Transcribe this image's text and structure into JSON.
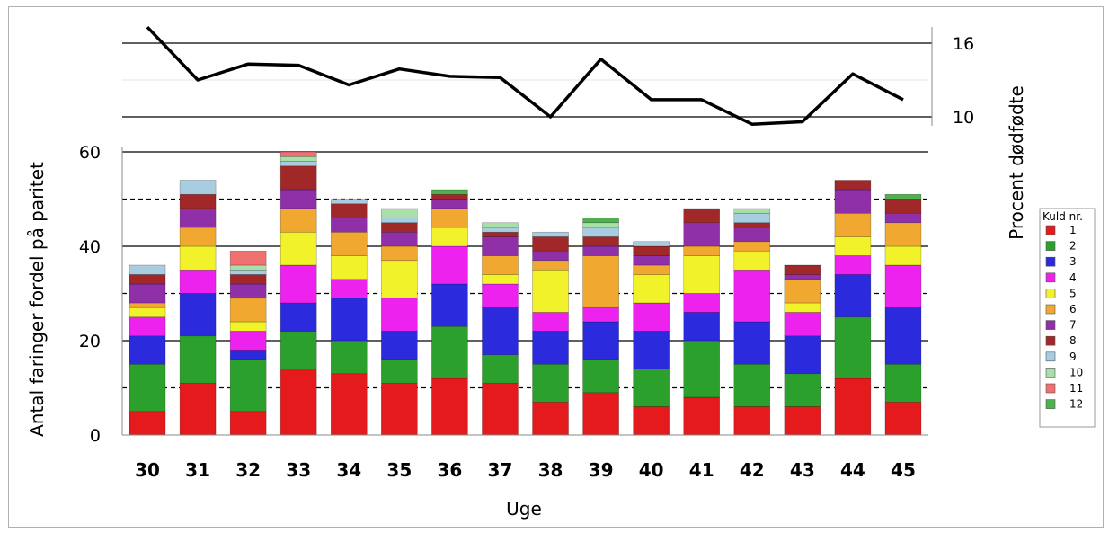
{
  "chart_data": {
    "type": "bar",
    "stacked": true,
    "xlabel": "Uge",
    "ylabel": "Antal faringer fordel på paritet",
    "ylim": [
      0,
      60
    ],
    "yticks": [
      0,
      20,
      40,
      60
    ],
    "dashed_gridlines": [
      10,
      30,
      50
    ],
    "categories": [
      "30",
      "31",
      "32",
      "33",
      "34",
      "35",
      "36",
      "37",
      "38",
      "39",
      "40",
      "41",
      "42",
      "43",
      "44",
      "45"
    ],
    "legend_title": "Kuld nr.",
    "legend_position": "right",
    "series": [
      {
        "name": "1",
        "color": "#e41a1c",
        "values": [
          5,
          11,
          5,
          14,
          13,
          11,
          12,
          11,
          7,
          9,
          6,
          8,
          6,
          6,
          12,
          7
        ]
      },
      {
        "name": "2",
        "color": "#2ca02c",
        "values": [
          10,
          10,
          11,
          8,
          7,
          5,
          11,
          6,
          8,
          7,
          8,
          12,
          9,
          7,
          13,
          8
        ]
      },
      {
        "name": "3",
        "color": "#2b2bdd",
        "values": [
          6,
          9,
          2,
          6,
          9,
          6,
          9,
          10,
          7,
          8,
          8,
          6,
          9,
          8,
          9,
          12
        ]
      },
      {
        "name": "4",
        "color": "#ee22ee",
        "values": [
          4,
          5,
          4,
          8,
          4,
          7,
          8,
          5,
          4,
          3,
          6,
          4,
          11,
          5,
          4,
          9
        ]
      },
      {
        "name": "5",
        "color": "#f2f22a",
        "values": [
          2,
          5,
          2,
          7,
          5,
          8,
          4,
          2,
          9,
          0,
          6,
          8,
          4,
          2,
          4,
          4
        ]
      },
      {
        "name": "6",
        "color": "#f0a830",
        "values": [
          1,
          4,
          5,
          5,
          5,
          3,
          4,
          4,
          2,
          11,
          2,
          2,
          2,
          5,
          5,
          5
        ]
      },
      {
        "name": "7",
        "color": "#9030a8",
        "values": [
          4,
          4,
          3,
          4,
          3,
          3,
          2,
          4,
          2,
          2,
          2,
          5,
          3,
          1,
          5,
          2
        ]
      },
      {
        "name": "8",
        "color": "#a02828",
        "values": [
          2,
          3,
          2,
          5,
          3,
          2,
          1,
          1,
          3,
          2,
          2,
          3,
          1,
          2,
          2,
          3
        ]
      },
      {
        "name": "9",
        "color": "#a8cce0",
        "values": [
          2,
          3,
          1,
          1,
          1,
          1,
          0,
          1,
          1,
          2,
          1,
          0,
          2,
          0,
          0,
          0
        ]
      },
      {
        "name": "10",
        "color": "#a8e0a8",
        "values": [
          0,
          0,
          1,
          1,
          0,
          2,
          0,
          1,
          0,
          1,
          0,
          0,
          1,
          0,
          0,
          0
        ]
      },
      {
        "name": "11",
        "color": "#f07070",
        "values": [
          0,
          0,
          3,
          1,
          0,
          0,
          0,
          0,
          0,
          0,
          0,
          0,
          0,
          0,
          0,
          0
        ]
      },
      {
        "name": "12",
        "color": "#50b050",
        "values": [
          0,
          0,
          0,
          0,
          0,
          0,
          1,
          0,
          0,
          1,
          0,
          0,
          0,
          0,
          0,
          1
        ]
      }
    ],
    "line": {
      "ylabel": "Procent dødfødte",
      "yticks": [
        10,
        16
      ],
      "ylim": [
        8,
        17.5
      ],
      "color": "#000000",
      "values": [
        17.3,
        13.0,
        14.3,
        14.2,
        12.6,
        13.9,
        13.3,
        13.2,
        10.0,
        14.7,
        11.4,
        11.4,
        9.4,
        9.6,
        13.5,
        11.4
      ]
    }
  }
}
